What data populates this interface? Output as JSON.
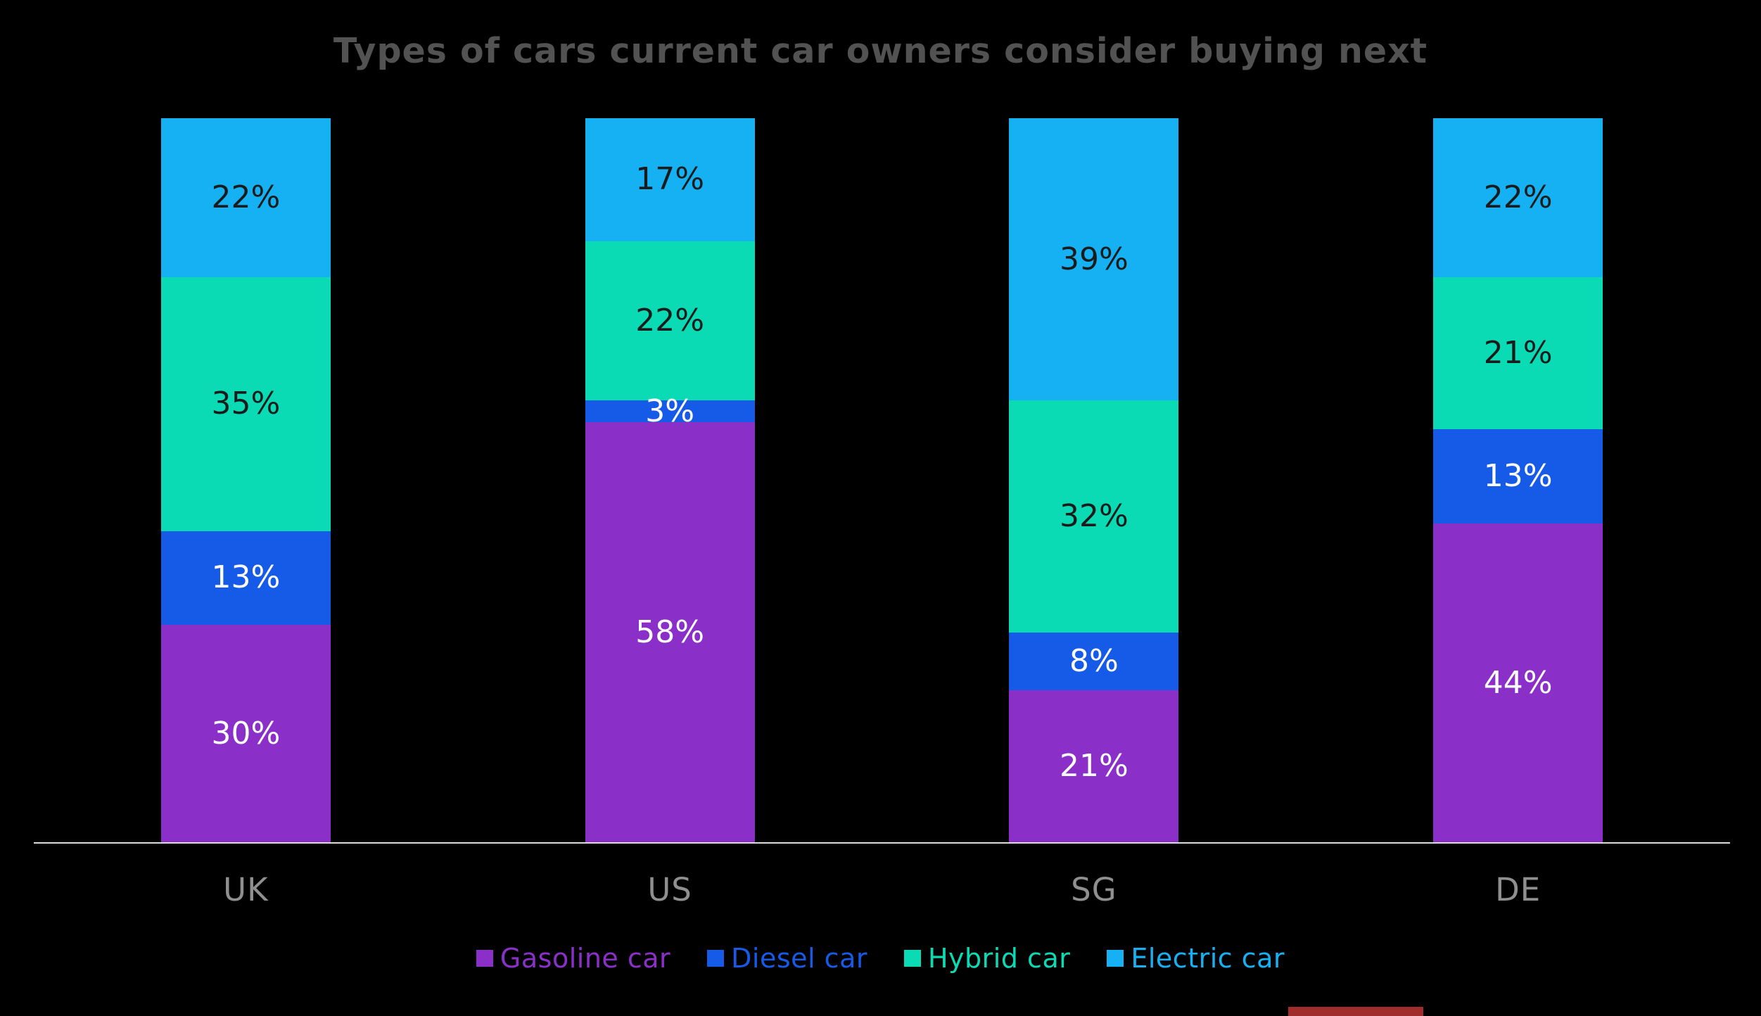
{
  "chart_data": {
    "type": "bar",
    "stacked": true,
    "title": "Types of cars current car owners consider buying next",
    "categories": [
      "UK",
      "US",
      "SG",
      "DE"
    ],
    "series": [
      {
        "name": "Gasoline car",
        "color": "#8b2fc9",
        "label_color": "#ffffff",
        "values": [
          30,
          58,
          21,
          44
        ]
      },
      {
        "name": "Diesel car",
        "color": "#165ae8",
        "label_color": "#ffffff",
        "values": [
          13,
          3,
          8,
          13
        ]
      },
      {
        "name": "Hybrid car",
        "color": "#0adbb5",
        "label_color": "#1b1b1b",
        "values": [
          35,
          22,
          32,
          21
        ]
      },
      {
        "name": "Electric car",
        "color": "#15b1f2",
        "label_color": "#1b1b1b",
        "values": [
          22,
          17,
          39,
          22
        ]
      }
    ],
    "value_suffix": "%",
    "ylim": [
      0,
      100
    ],
    "grid": false,
    "legend_position": "bottom"
  },
  "colors": {
    "background": "#000000",
    "title": "#525252",
    "category_label": "#8f8f8f",
    "axis_line": "#dcdcdc",
    "bottom_strip": "#a02c2c"
  }
}
